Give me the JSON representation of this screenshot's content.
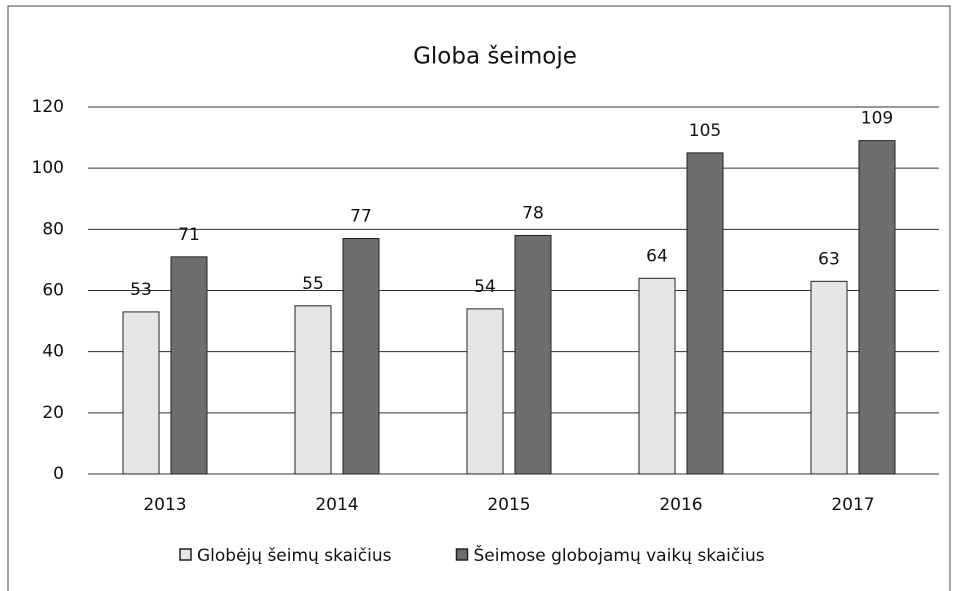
{
  "chart_data": {
    "type": "bar",
    "title": "Globa šeimoje",
    "categories": [
      "2013",
      "2014",
      "2015",
      "2016",
      "2017"
    ],
    "series": [
      {
        "name": "Globėjų šeimų skaičius",
        "color": "#e6e6e6",
        "values": [
          53,
          55,
          54,
          64,
          63
        ]
      },
      {
        "name": "Šeimose globojamų vaikų skaičius",
        "color": "#6e6e6e",
        "values": [
          71,
          77,
          78,
          105,
          109
        ]
      }
    ],
    "ylim": [
      0,
      120
    ],
    "yticks": [
      0,
      20,
      40,
      60,
      80,
      100,
      120
    ],
    "grid": true,
    "legend": "bottom"
  }
}
